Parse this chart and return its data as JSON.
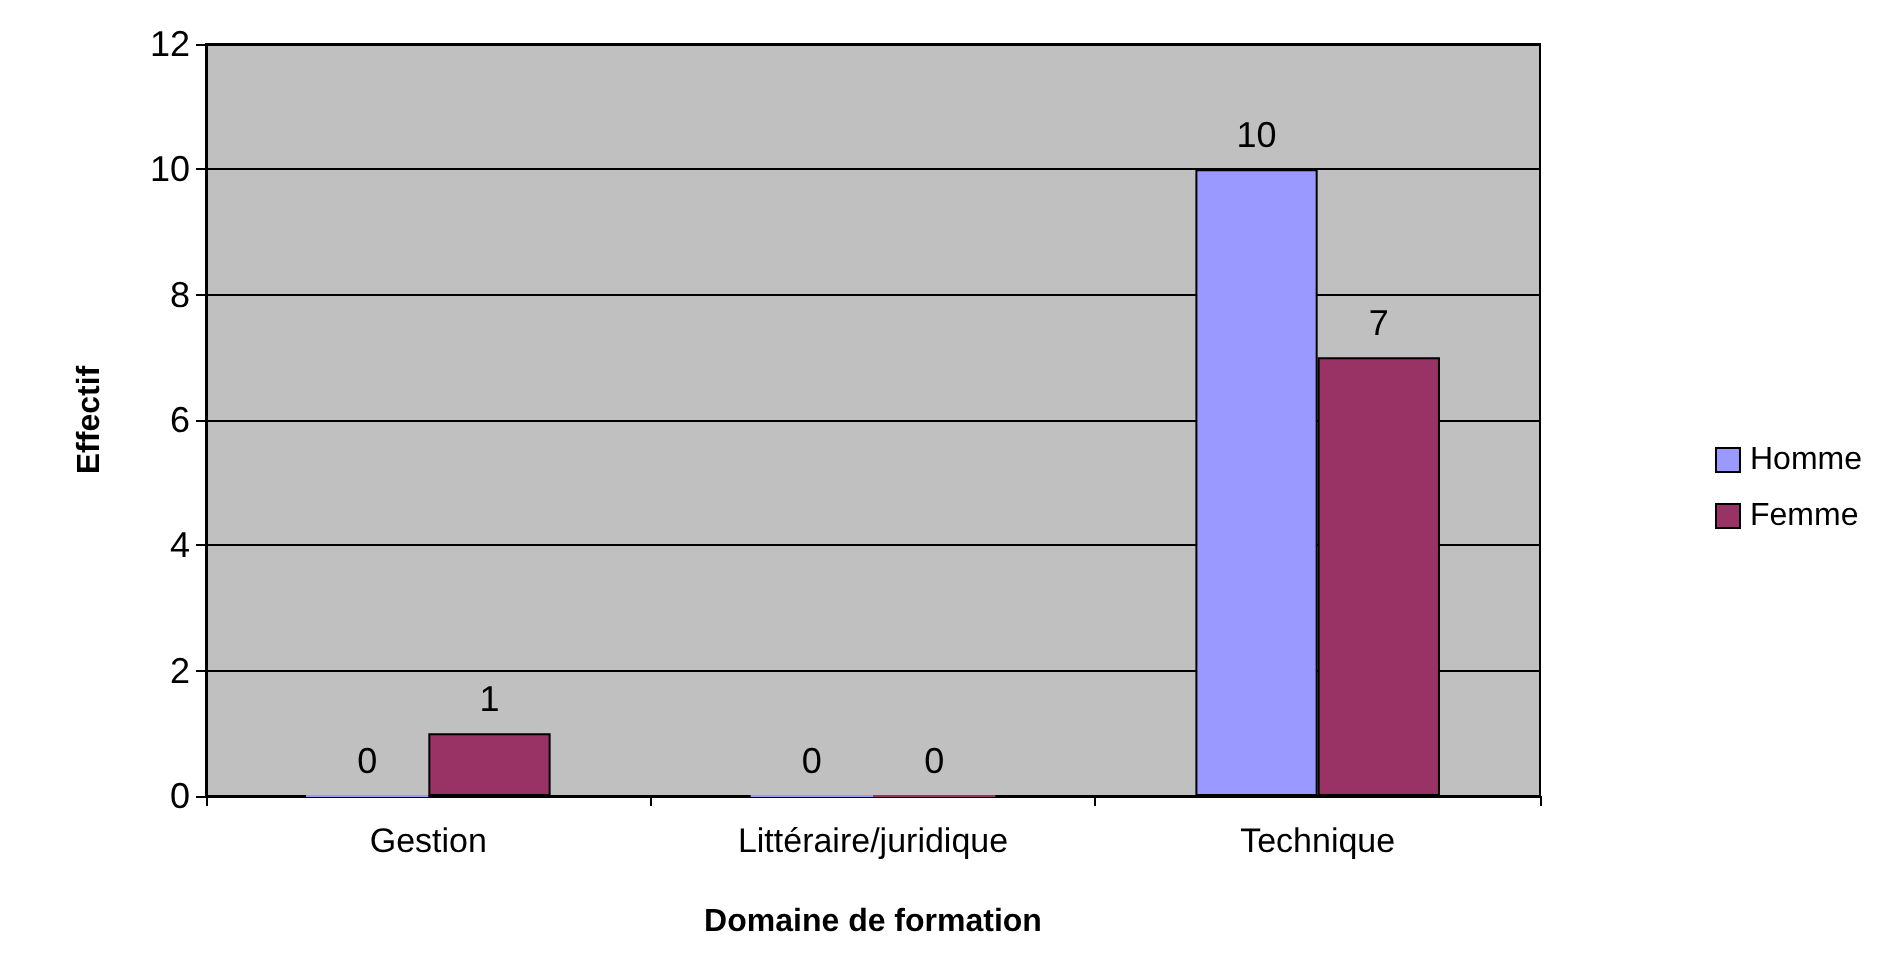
{
  "chart_data": {
    "type": "bar",
    "xlabel": "Domaine de formation",
    "ylabel": "Effectif",
    "categories": [
      "Gestion",
      "Littéraire/juridique",
      "Technique"
    ],
    "series": [
      {
        "name": "Homme",
        "color": "#9999ff",
        "values": [
          0,
          0,
          10
        ]
      },
      {
        "name": "Femme",
        "color": "#993366",
        "values": [
          1,
          0,
          7
        ]
      }
    ],
    "ylim": [
      0,
      12
    ],
    "yticks": [
      0,
      2,
      4,
      6,
      8,
      10,
      12
    ],
    "grid": "y",
    "legend": "right",
    "data_labels": true
  }
}
